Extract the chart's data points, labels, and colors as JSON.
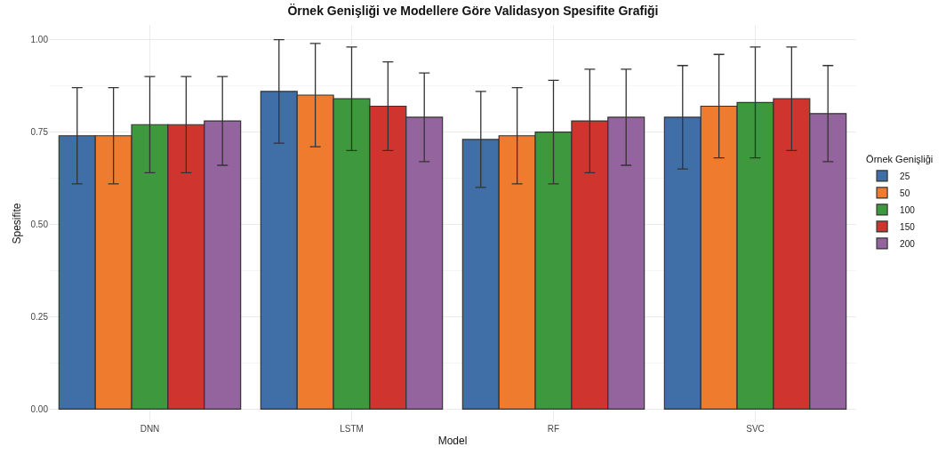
{
  "chart_data": {
    "type": "bar",
    "title": "Örnek Genişliği ve Modellere Göre Validasyon Spesifite Grafiği",
    "xlabel": "Model",
    "ylabel": "Spesifite",
    "legend_title": "Örnek Genişliği",
    "categories": [
      "DNN",
      "LSTM",
      "RF",
      "SVC"
    ],
    "series": [
      {
        "name": "25",
        "color": "#3f6fa6",
        "values": [
          0.74,
          0.86,
          0.73,
          0.79
        ],
        "errors": [
          [
            0.61,
            0.87
          ],
          [
            0.72,
            1.0
          ],
          [
            0.6,
            0.86
          ],
          [
            0.65,
            0.93
          ]
        ]
      },
      {
        "name": "50",
        "color": "#ef7c2e",
        "values": [
          0.74,
          0.85,
          0.74,
          0.82
        ],
        "errors": [
          [
            0.61,
            0.87
          ],
          [
            0.71,
            0.99
          ],
          [
            0.61,
            0.87
          ],
          [
            0.68,
            0.96
          ]
        ]
      },
      {
        "name": "100",
        "color": "#3e983e",
        "values": [
          0.77,
          0.84,
          0.75,
          0.83
        ],
        "errors": [
          [
            0.64,
            0.9
          ],
          [
            0.7,
            0.98
          ],
          [
            0.61,
            0.89
          ],
          [
            0.68,
            0.98
          ]
        ]
      },
      {
        "name": "150",
        "color": "#cf352e",
        "values": [
          0.77,
          0.82,
          0.78,
          0.84
        ],
        "errors": [
          [
            0.64,
            0.9
          ],
          [
            0.7,
            0.94
          ],
          [
            0.64,
            0.92
          ],
          [
            0.7,
            0.98
          ]
        ]
      },
      {
        "name": "200",
        "color": "#94649e",
        "values": [
          0.78,
          0.79,
          0.79,
          0.8
        ],
        "errors": [
          [
            0.66,
            0.9
          ],
          [
            0.67,
            0.91
          ],
          [
            0.66,
            0.92
          ],
          [
            0.67,
            0.93
          ]
        ]
      }
    ],
    "ylim": [
      -0.035,
      1.04
    ],
    "yticks": [
      {
        "value": 0,
        "label": "0.00"
      },
      {
        "value": 0.25,
        "label": "0.25"
      },
      {
        "value": 0.5,
        "label": "0.50"
      },
      {
        "value": 0.75,
        "label": "0.75"
      },
      {
        "value": 1,
        "label": "1.00"
      }
    ],
    "grid": true,
    "legend": "right"
  }
}
